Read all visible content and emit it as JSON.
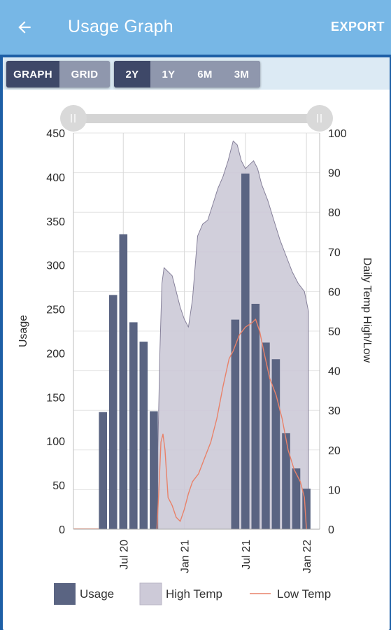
{
  "header": {
    "title": "Usage Graph",
    "back_icon": "arrow-left-icon",
    "export_label": "EXPORT"
  },
  "view_toggle": [
    {
      "label": "GRAPH",
      "active": true
    },
    {
      "label": "GRID",
      "active": false
    }
  ],
  "range_toggle": [
    {
      "label": "2Y",
      "active": true
    },
    {
      "label": "1Y",
      "active": false
    },
    {
      "label": "6M",
      "active": false
    },
    {
      "label": "3M",
      "active": false
    }
  ],
  "colors": {
    "appbar": "#77b7e6",
    "bar": "#5a6482",
    "high_fill": "#cdcad8",
    "high_line": "#7a7490",
    "low_line": "#e8826a"
  },
  "chart_data": {
    "type": "bar",
    "ylabel": "Usage",
    "y2label": "Daily Temp High/Low",
    "ylim": [
      0,
      450
    ],
    "y2lim": [
      0,
      100
    ],
    "yticks": [
      0,
      50,
      100,
      150,
      200,
      250,
      300,
      350,
      400,
      450
    ],
    "y2ticks": [
      0,
      10,
      20,
      30,
      40,
      50,
      60,
      70,
      80,
      90,
      100
    ],
    "xticks": [
      {
        "label": "Jul 20",
        "t": 3.2
      },
      {
        "label": "Jan 21",
        "t": 9.2
      },
      {
        "label": "Jul 21",
        "t": 15.2
      },
      {
        "label": "Jan 22",
        "t": 21.2
      }
    ],
    "xlim": [
      -1.7,
      22.5
    ],
    "grid": true,
    "legend_position": "bottom",
    "series": [
      {
        "name": "Usage",
        "kind": "bar",
        "t": [
          1.2,
          2.2,
          3.2,
          4.2,
          5.2,
          6.2,
          14.2,
          15.2,
          16.2,
          17.2,
          18.2,
          19.2,
          20.2,
          21.2
        ],
        "values": [
          133,
          266,
          335,
          235,
          213,
          134,
          238,
          404,
          256,
          212,
          193,
          109,
          69,
          46
        ]
      },
      {
        "name": "High Temp",
        "kind": "area",
        "t": [
          6.6,
          6.8,
          7.0,
          7.2,
          7.6,
          8.0,
          8.4,
          8.8,
          9.2,
          9.6,
          10.0,
          10.5,
          11.0,
          11.5,
          12.0,
          12.5,
          13.0,
          13.5,
          14.0,
          14.4,
          14.8,
          15.2,
          15.6,
          16.0,
          16.4,
          16.8,
          17.4,
          18.0,
          18.6,
          19.2,
          19.8,
          20.4,
          21.0,
          21.4
        ],
        "values": [
          20,
          45,
          62,
          66,
          65,
          64,
          60,
          56,
          53,
          51,
          58,
          74,
          77,
          78,
          82,
          86,
          89,
          93,
          98,
          97,
          93,
          91,
          92,
          93,
          91,
          87,
          83,
          78,
          73,
          69,
          65,
          62,
          60,
          55
        ]
      },
      {
        "name": "Low Temp",
        "kind": "line",
        "t": [
          6.5,
          6.7,
          6.9,
          7.1,
          7.3,
          7.6,
          8.0,
          8.4,
          8.8,
          9.2,
          9.6,
          10.0,
          10.6,
          11.2,
          11.8,
          12.4,
          13.0,
          13.6,
          14.0,
          14.6,
          15.2,
          15.8,
          16.2,
          16.6,
          17.0,
          17.6,
          18.2,
          18.8,
          19.4,
          20.0,
          20.6,
          21.0,
          21.2
        ],
        "values": [
          0,
          10,
          22,
          24,
          20,
          8,
          6,
          3,
          2,
          5,
          9,
          12,
          14,
          18,
          22,
          28,
          36,
          43,
          45,
          49,
          51,
          52,
          53,
          50,
          45,
          38,
          34,
          28,
          20,
          15,
          12,
          8,
          0
        ]
      }
    ]
  },
  "legend": [
    {
      "label": "Usage",
      "kind": "bar"
    },
    {
      "label": "High Temp",
      "kind": "area"
    },
    {
      "label": "Low Temp",
      "kind": "line"
    }
  ]
}
